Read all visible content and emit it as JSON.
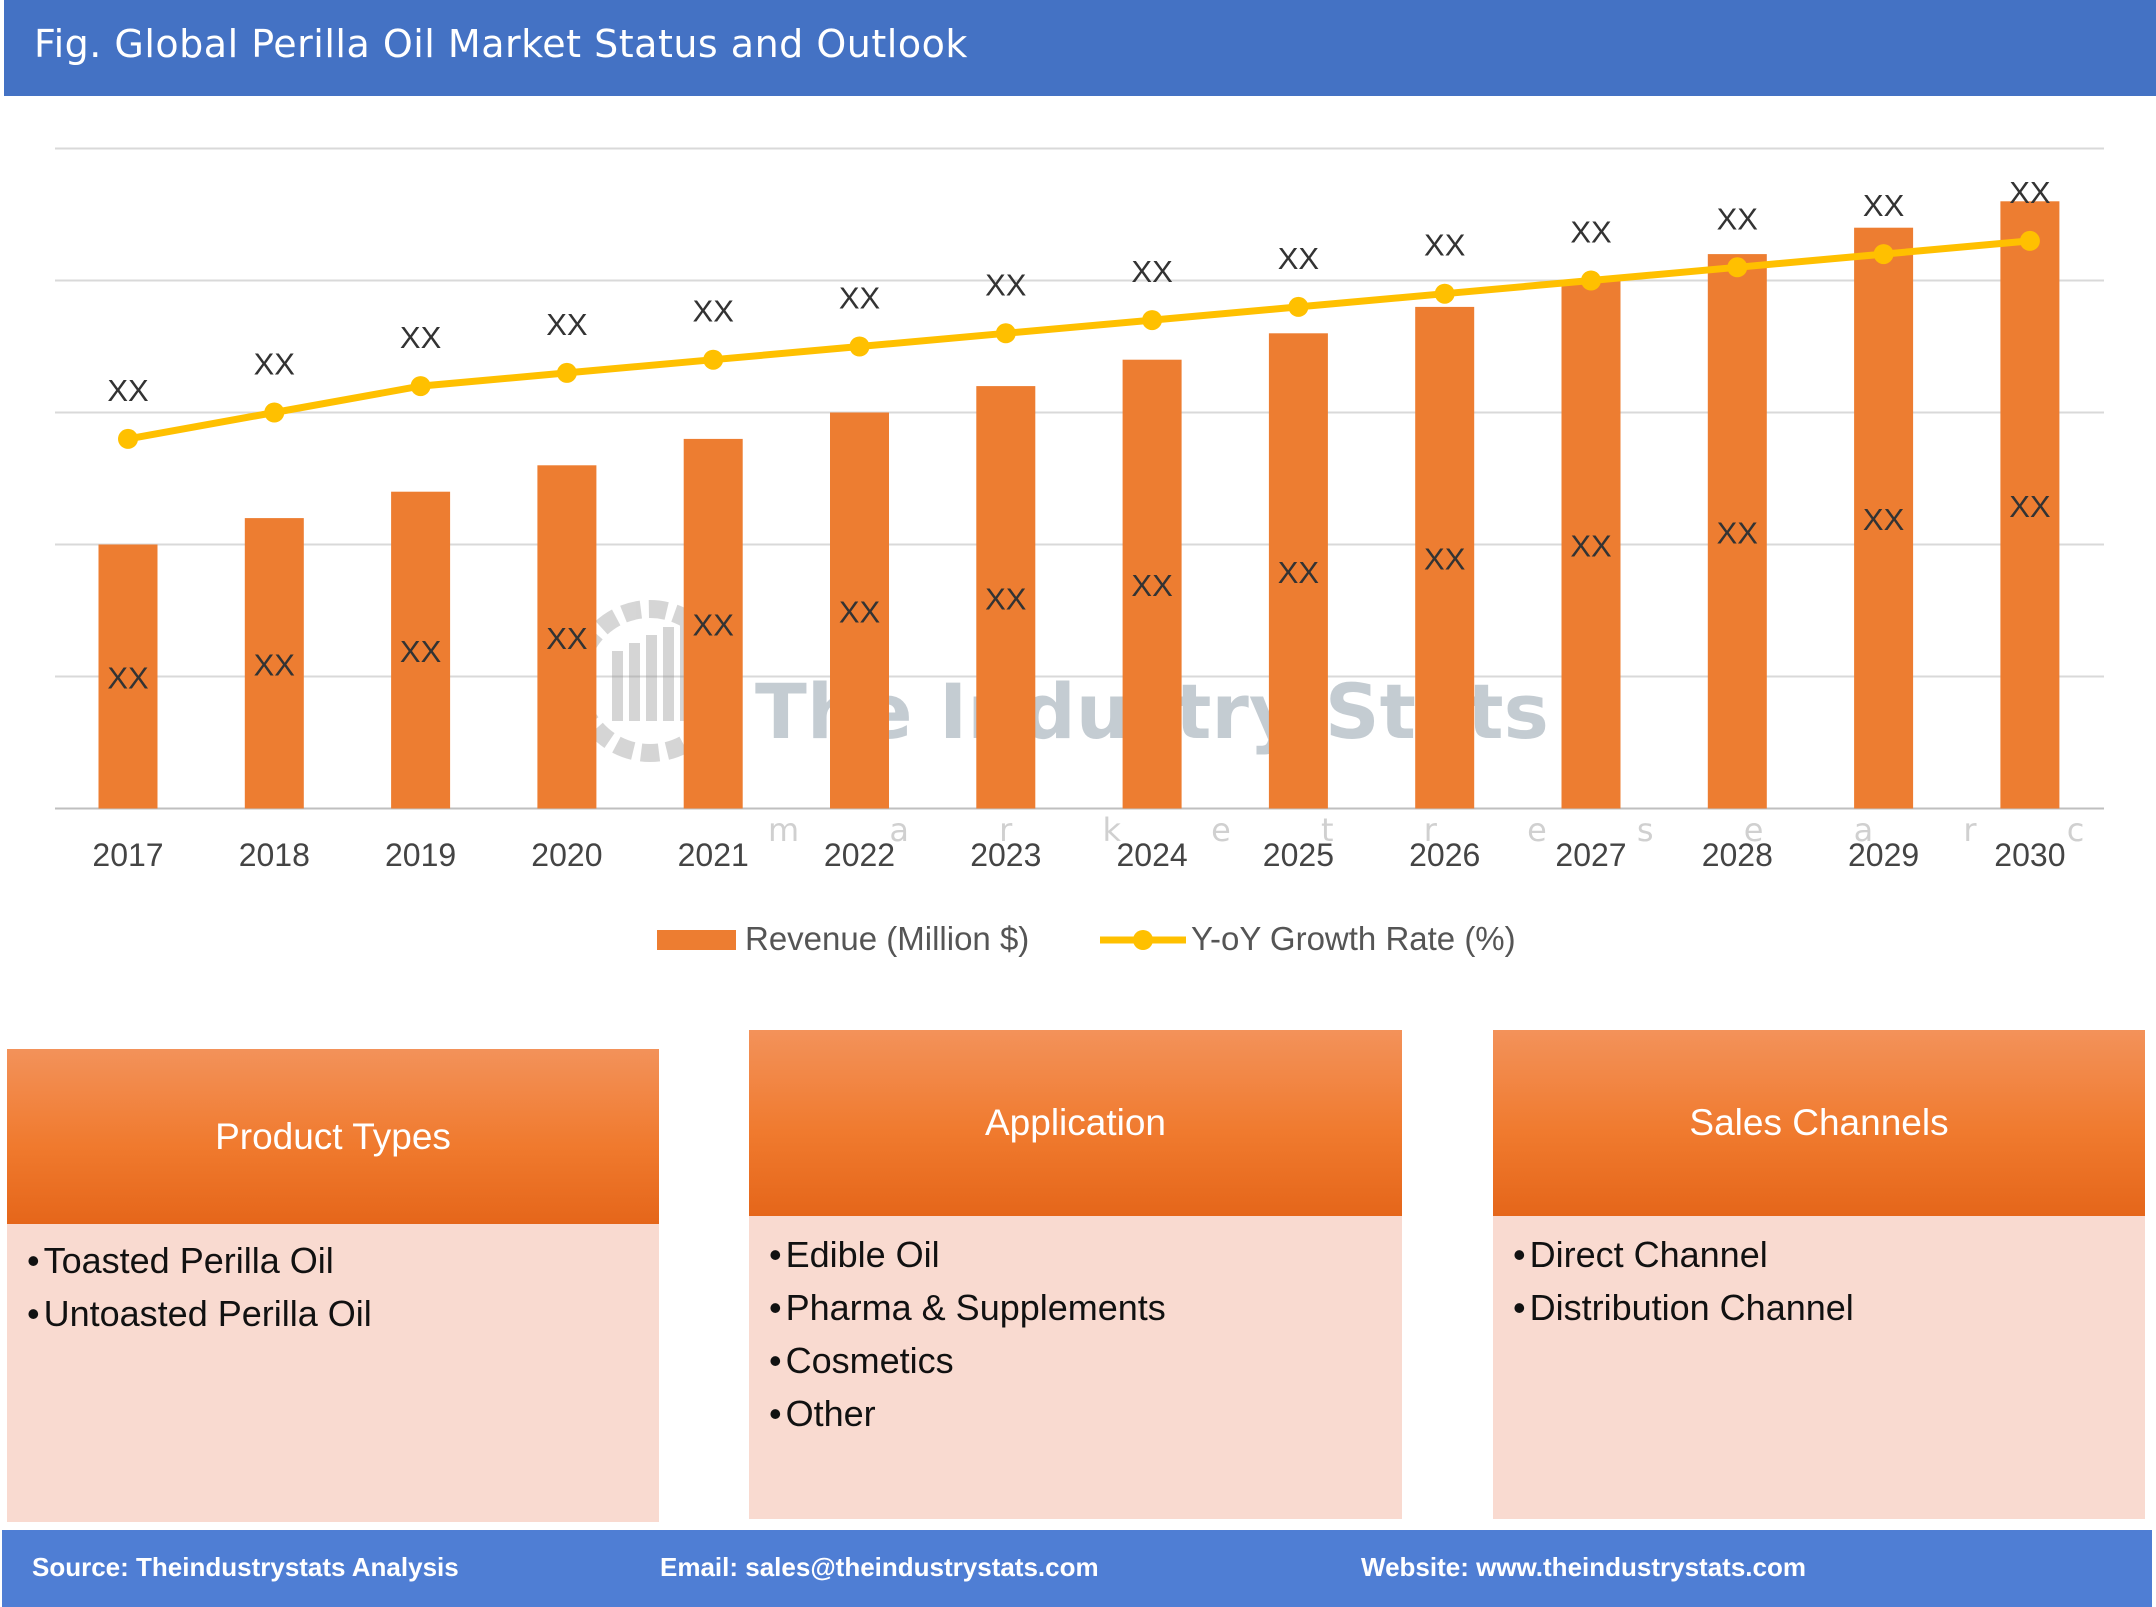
{
  "header": {
    "title": "Fig. Global Perilla Oil Market Status and Outlook"
  },
  "chart_data": {
    "type": "bar",
    "categories": [
      "2017",
      "2018",
      "2019",
      "2020",
      "2021",
      "2022",
      "2023",
      "2024",
      "2025",
      "2026",
      "2027",
      "2028",
      "2029",
      "2030"
    ],
    "series": [
      {
        "name": "Revenue (Million $)",
        "type": "bar",
        "color": "#ED7D31",
        "values": [
          2.0,
          2.2,
          2.4,
          2.6,
          2.8,
          3.0,
          3.2,
          3.4,
          3.6,
          3.8,
          4.0,
          4.2,
          4.4,
          4.6
        ],
        "labels": [
          "XX",
          "XX",
          "XX",
          "XX",
          "XX",
          "XX",
          "XX",
          "XX",
          "XX",
          "XX",
          "XX",
          "XX",
          "XX",
          "XX"
        ]
      },
      {
        "name": "Y-oY Growth Rate (%)",
        "type": "line",
        "color": "#FFC000",
        "values": [
          2.8,
          3.0,
          3.2,
          3.3,
          3.4,
          3.5,
          3.6,
          3.7,
          3.8,
          3.9,
          4.0,
          4.1,
          4.2,
          4.3
        ],
        "labels": [
          "XX",
          "XX",
          "XX",
          "XX",
          "XX",
          "XX",
          "XX",
          "XX",
          "XX",
          "XX",
          "XX",
          "XX",
          "XX",
          "XX"
        ]
      }
    ],
    "ylim": [
      0,
      5
    ],
    "grid": true,
    "y_tick_labels": false,
    "legend": "bottom"
  },
  "watermark": {
    "name": "The Industry Stats",
    "tagline": "market research"
  },
  "segments": [
    {
      "title": "Product Types",
      "items": [
        "Toasted Perilla Oil",
        "Untoasted Perilla Oil"
      ]
    },
    {
      "title": "Application",
      "items": [
        "Edible Oil",
        "Pharma & Supplements",
        "Cosmetics",
        "Other"
      ]
    },
    {
      "title": "Sales Channels",
      "items": [
        "Direct Channel",
        "Distribution Channel"
      ]
    }
  ],
  "footer": {
    "source": "Source: Theindustrystats Analysis",
    "email": "Email: sales@theindustrystats.com",
    "website": "Website: www.theindustrystats.com"
  }
}
